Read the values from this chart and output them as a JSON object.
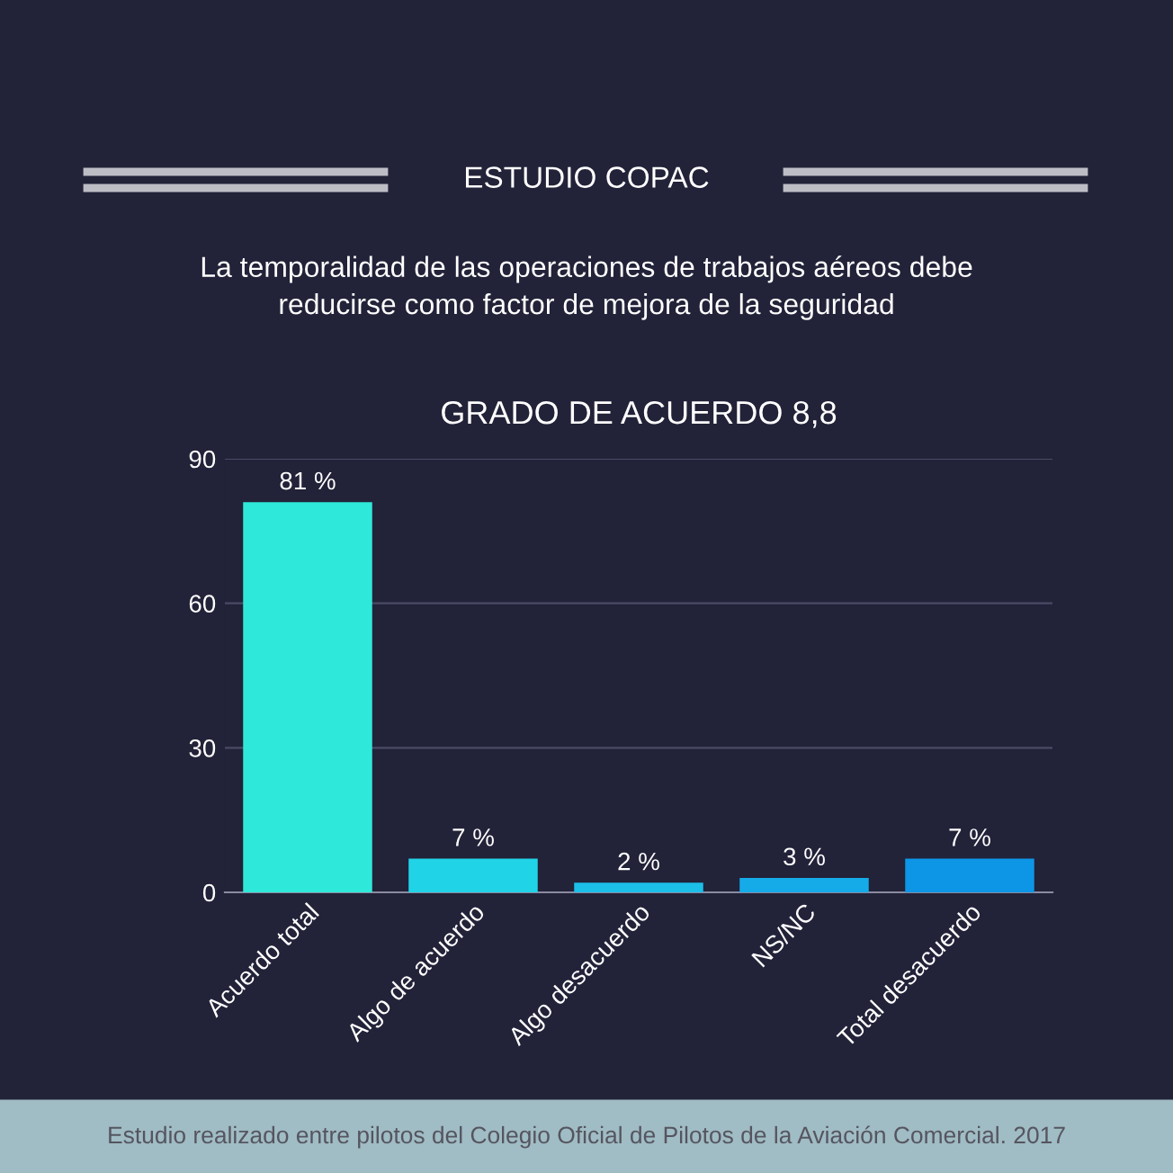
{
  "chart_data": {
    "type": "bar",
    "title": "GRADO DE ACUERDO 8,8",
    "subtitle": "La temporalidad de las operaciones de trabajos aéreos debe\nreducirse como factor de mejora de la seguridad",
    "annotations": [
      "ESTUDIO COPAC",
      "Estudio realizado entre pilotos del Colegio Oficial de Pilotos de la Aviación Comercial. 2017"
    ],
    "categories": [
      "Acuerdo total",
      "Algo de acuerdo",
      "Algo desacuerdo",
      "NS/NC",
      "Total desacuerdo"
    ],
    "values": [
      81,
      7,
      2,
      3,
      7
    ],
    "value_labels": [
      "81 %",
      "7 %",
      "2 %",
      "3 %",
      "7 %"
    ],
    "colors": [
      "#2ee8d9",
      "#21d3e6",
      "#1bbfe8",
      "#15abe8",
      "#0d95e6"
    ],
    "ylim": [
      0,
      90
    ],
    "yticks": [
      0,
      30,
      60,
      90
    ],
    "grid": "y"
  }
}
